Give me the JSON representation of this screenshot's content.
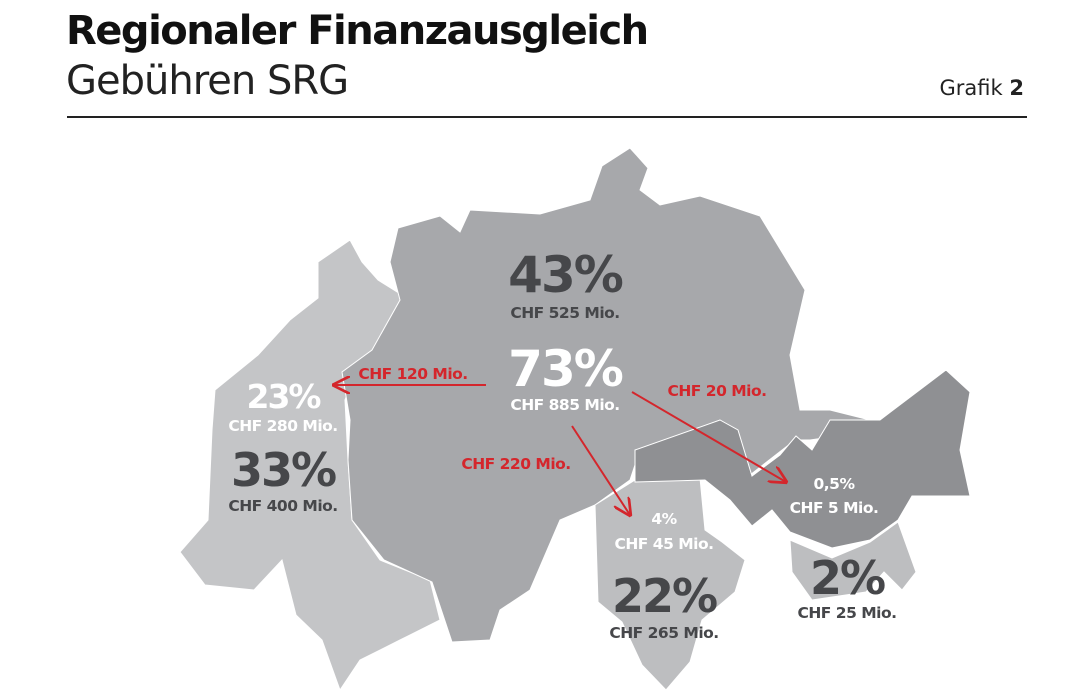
{
  "header": {
    "title": "Regionaler Finanzausgleich",
    "subtitle": "Gebühren SRG",
    "grafik_label": "Grafik",
    "grafik_number": "2"
  },
  "colors": {
    "german": "#a7a8ab",
    "french": "#c4c5c7",
    "italian": "#bdbec0",
    "romansh": "#8f9093",
    "dark_text": "#46474a",
    "red": "#d4262c"
  },
  "regions": {
    "german_receive": {
      "percent": "43%",
      "amount": "CHF 525 Mio."
    },
    "german_pay": {
      "percent": "73%",
      "amount": "CHF 885 Mio."
    },
    "french_pay": {
      "percent": "23%",
      "amount": "CHF 280 Mio."
    },
    "french_receive": {
      "percent": "33%",
      "amount": "CHF 400 Mio."
    },
    "italian_pay": {
      "percent": "4%",
      "amount": "CHF 45 Mio."
    },
    "italian_receive": {
      "percent": "22%",
      "amount": "CHF 265 Mio."
    },
    "romansh_pay": {
      "percent": "0,5%",
      "amount": "CHF 5 Mio."
    },
    "romansh_receive": {
      "percent": "2%",
      "amount": "CHF 25 Mio."
    }
  },
  "flows": {
    "to_french": "CHF 120 Mio.",
    "to_romansh": "CHF 20 Mio.",
    "to_italian": "CHF 220 Mio."
  }
}
